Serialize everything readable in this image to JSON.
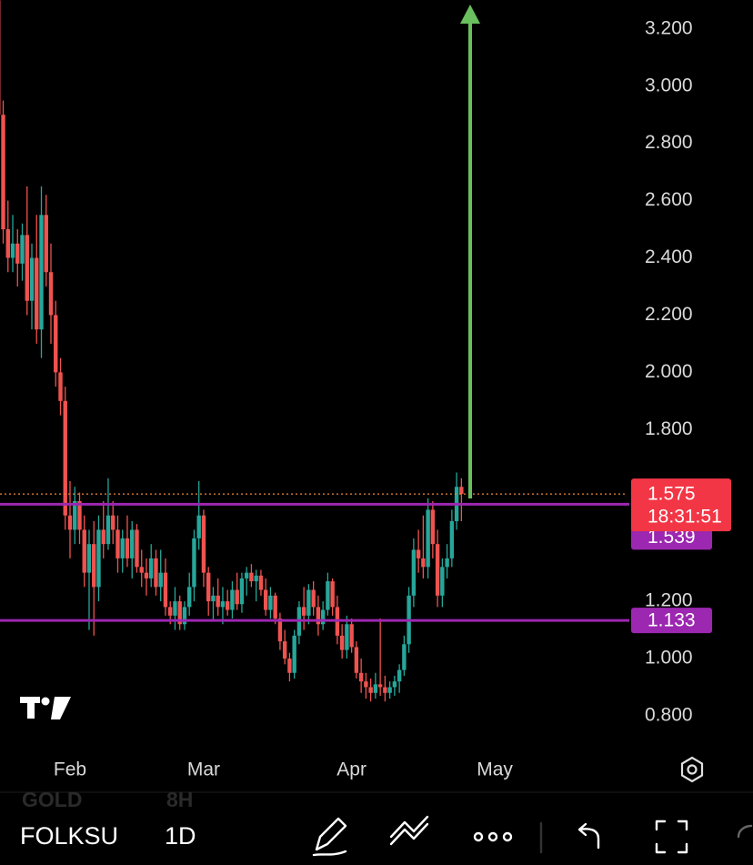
{
  "chart_data": {
    "type": "candlestick",
    "x": [
      0,
      1,
      2,
      3,
      4,
      5,
      6,
      7,
      8,
      9,
      10,
      11,
      12,
      13,
      14,
      15,
      16,
      17,
      18,
      19,
      20,
      21,
      22,
      23,
      24,
      25,
      26,
      27,
      28,
      29,
      30,
      31,
      32,
      33,
      34,
      35,
      36,
      37,
      38,
      39,
      40,
      41,
      42,
      43,
      44,
      45,
      46,
      47,
      48,
      49,
      50,
      51,
      52,
      53,
      54,
      55,
      56,
      57,
      58,
      59,
      60,
      61,
      62,
      63,
      64,
      65,
      66,
      67,
      68,
      69,
      70,
      71,
      72,
      73,
      74,
      75,
      76,
      77,
      78,
      79,
      80,
      81,
      82,
      83,
      84,
      85,
      86,
      87,
      88,
      89,
      90,
      91,
      92,
      93,
      94,
      95,
      96,
      97
    ],
    "open": [
      3.3,
      2.9,
      2.5,
      2.4,
      2.45,
      2.38,
      2.48,
      2.25,
      2.4,
      2.15,
      2.55,
      2.35,
      2.2,
      2.0,
      1.9,
      1.5,
      1.45,
      1.55,
      1.45,
      1.3,
      1.4,
      1.25,
      1.45,
      1.4,
      1.5,
      1.45,
      1.35,
      1.42,
      1.35,
      1.45,
      1.32,
      1.3,
      1.28,
      1.35,
      1.25,
      1.3,
      1.18,
      1.15,
      1.2,
      1.12,
      1.18,
      1.25,
      1.42,
      1.5,
      1.3,
      1.2,
      1.22,
      1.18,
      1.2,
      1.17,
      1.24,
      1.19,
      1.28,
      1.3,
      1.27,
      1.29,
      1.24,
      1.17,
      1.22,
      1.14,
      1.06,
      1.0,
      0.95,
      1.08,
      1.18,
      1.15,
      1.24,
      1.18,
      1.12,
      1.17,
      1.27,
      1.18,
      1.08,
      1.03,
      1.12,
      1.04,
      0.95,
      0.92,
      0.9,
      0.88,
      0.91,
      0.9,
      0.88,
      0.9,
      0.92,
      0.96,
      1.05,
      1.22,
      1.38,
      1.35,
      1.32,
      1.52,
      1.4,
      1.22,
      1.32,
      1.35,
      1.48,
      1.6
    ],
    "high": [
      3.35,
      2.95,
      2.6,
      2.55,
      2.5,
      2.52,
      2.65,
      2.45,
      2.55,
      2.65,
      2.62,
      2.45,
      2.25,
      2.05,
      1.95,
      1.62,
      1.6,
      1.58,
      1.5,
      1.45,
      1.48,
      1.5,
      1.55,
      1.63,
      1.55,
      1.5,
      1.45,
      1.5,
      1.48,
      1.47,
      1.38,
      1.35,
      1.4,
      1.38,
      1.38,
      1.35,
      1.2,
      1.25,
      1.22,
      1.2,
      1.3,
      1.45,
      1.62,
      1.52,
      1.32,
      1.25,
      1.28,
      1.25,
      1.24,
      1.27,
      1.3,
      1.3,
      1.32,
      1.33,
      1.31,
      1.31,
      1.28,
      1.25,
      1.23,
      1.16,
      1.1,
      1.02,
      1.1,
      1.2,
      1.25,
      1.26,
      1.27,
      1.22,
      1.2,
      1.3,
      1.28,
      1.22,
      1.12,
      1.15,
      1.14,
      1.06,
      1.0,
      0.95,
      0.93,
      0.95,
      1.14,
      0.94,
      0.92,
      0.94,
      0.98,
      1.08,
      1.25,
      1.42,
      1.45,
      1.5,
      1.56,
      1.55,
      1.45,
      1.35,
      1.4,
      1.52,
      1.65,
      1.63
    ],
    "low": [
      2.85,
      2.45,
      2.35,
      2.35,
      2.3,
      2.32,
      2.2,
      2.15,
      2.1,
      2.05,
      2.3,
      2.1,
      1.95,
      1.85,
      1.45,
      1.35,
      1.4,
      1.4,
      1.25,
      1.1,
      1.08,
      1.2,
      1.35,
      1.38,
      1.4,
      1.3,
      1.3,
      1.32,
      1.28,
      1.3,
      1.25,
      1.22,
      1.25,
      1.22,
      1.2,
      1.15,
      1.12,
      1.1,
      1.1,
      1.1,
      1.15,
      1.2,
      1.38,
      1.25,
      1.15,
      1.13,
      1.15,
      1.12,
      1.15,
      1.14,
      1.17,
      1.16,
      1.22,
      1.25,
      1.2,
      1.22,
      1.15,
      1.14,
      1.12,
      1.03,
      0.98,
      0.92,
      0.93,
      1.05,
      1.1,
      1.12,
      1.15,
      1.08,
      1.1,
      1.15,
      1.15,
      1.05,
      1.0,
      1.0,
      1.02,
      0.93,
      0.88,
      0.86,
      0.85,
      0.86,
      0.87,
      0.85,
      0.86,
      0.87,
      0.88,
      0.94,
      1.02,
      1.18,
      1.3,
      1.28,
      1.28,
      1.35,
      1.18,
      1.18,
      1.28,
      1.32,
      1.45,
      1.48
    ],
    "close": [
      2.9,
      2.5,
      2.4,
      2.45,
      2.38,
      2.48,
      2.25,
      2.4,
      2.15,
      2.55,
      2.35,
      2.2,
      2.0,
      1.9,
      1.5,
      1.45,
      1.55,
      1.45,
      1.3,
      1.4,
      1.25,
      1.45,
      1.4,
      1.5,
      1.45,
      1.35,
      1.42,
      1.35,
      1.45,
      1.32,
      1.3,
      1.28,
      1.35,
      1.25,
      1.3,
      1.18,
      1.15,
      1.2,
      1.12,
      1.18,
      1.25,
      1.42,
      1.5,
      1.3,
      1.2,
      1.22,
      1.18,
      1.2,
      1.17,
      1.24,
      1.19,
      1.28,
      1.3,
      1.27,
      1.29,
      1.24,
      1.17,
      1.22,
      1.14,
      1.06,
      1.0,
      0.95,
      1.08,
      1.18,
      1.15,
      1.24,
      1.18,
      1.12,
      1.17,
      1.27,
      1.18,
      1.08,
      1.03,
      1.12,
      1.04,
      0.95,
      0.92,
      0.9,
      0.88,
      0.91,
      0.9,
      0.88,
      0.9,
      0.92,
      0.96,
      1.05,
      1.22,
      1.38,
      1.35,
      1.32,
      1.52,
      1.4,
      1.22,
      1.32,
      1.35,
      1.48,
      1.6,
      1.575
    ],
    "up_color": "#26a69a",
    "down_color": "#ef5350",
    "xlim": [
      0.33,
      131.8
    ],
    "xticks": [
      {
        "value": 15,
        "label": "Feb"
      },
      {
        "value": 43,
        "label": "Mar"
      },
      {
        "value": 74,
        "label": "Apr"
      },
      {
        "value": 104,
        "label": "May"
      }
    ],
    "ylim": [
      0.695,
      3.301
    ],
    "yticks": [
      {
        "value": 0.8,
        "label": "0.800"
      },
      {
        "value": 1.0,
        "label": "1.000"
      },
      {
        "value": 1.2,
        "label": "1.200"
      },
      {
        "value": 1.4,
        "label": "1.400"
      },
      {
        "value": 1.6,
        "label": "1.600"
      },
      {
        "value": 1.8,
        "label": "1.800"
      },
      {
        "value": 2.0,
        "label": "2.000"
      },
      {
        "value": 2.2,
        "label": "2.200"
      },
      {
        "value": 2.4,
        "label": "2.400"
      },
      {
        "value": 2.6,
        "label": "2.600"
      },
      {
        "value": 2.8,
        "label": "2.800"
      },
      {
        "value": 3.0,
        "label": "3.000"
      },
      {
        "value": 3.2,
        "label": "3.200"
      }
    ],
    "levels": [
      {
        "value": 1.539,
        "label": "1.539"
      },
      {
        "value": 1.133,
        "label": "1.133"
      }
    ],
    "level_color": "#9c27b0",
    "last_price": {
      "value": 1.575,
      "label": "1.575",
      "countdown": "18:31:51"
    }
  },
  "toolbar": {
    "symbol": "FOLKSU",
    "interval": "1D",
    "ghost_symbol": "GOLD",
    "ghost_interval": "8H"
  }
}
